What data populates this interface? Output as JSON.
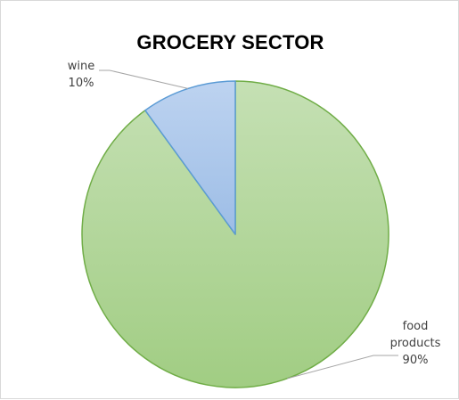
{
  "chart_data": {
    "type": "pie",
    "title": "GROCERY  SECTOR",
    "slices": [
      {
        "name": "food products",
        "label_lines": [
          "food",
          "products"
        ],
        "value": 90,
        "pct_label": "90%",
        "fill": "#a9d08e",
        "stroke": "#70ad47"
      },
      {
        "name": "wine",
        "label_lines": [
          "wine"
        ],
        "value": 10,
        "pct_label": "10%",
        "fill": "#a9c4eb",
        "stroke": "#5b9bd5"
      }
    ],
    "leader_line_color": "#a6a6a6"
  }
}
